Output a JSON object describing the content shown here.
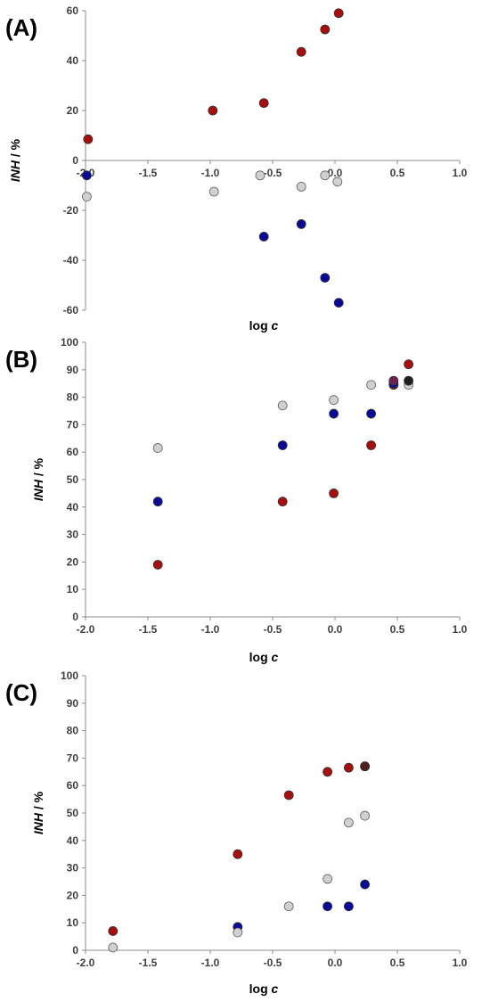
{
  "chart_data": [
    {
      "type": "scatter",
      "panel_label": "(A)",
      "xlabel": {
        "plain": "log ",
        "italic": "c"
      },
      "ylabel": {
        "italic": "INH",
        "plain": " / %"
      },
      "xlim": [
        -2.0,
        1.0
      ],
      "ylim": [
        -60,
        60
      ],
      "xticks": [
        -2.0,
        -1.5,
        -1.0,
        -0.5,
        0.0,
        0.5,
        1.0
      ],
      "xtick_labels": [
        "-2.0",
        "-1.5",
        "-1.0",
        "-0.5",
        "0.0",
        "0.5",
        "1.0"
      ],
      "yticks": [
        -60,
        -40,
        -20,
        0,
        20,
        40,
        60
      ],
      "ytick_labels": [
        "-60",
        "-40",
        "-20",
        "0",
        "20",
        "40",
        "60"
      ],
      "x_axis_at": 0,
      "grid": false,
      "series": [
        {
          "color": "#a50f0f",
          "points": [
            [
              -1.98,
              8.5
            ],
            [
              -0.98,
              20
            ],
            [
              -0.57,
              23
            ],
            [
              -0.27,
              43.5
            ],
            [
              -0.08,
              52.5
            ],
            [
              0.03,
              59
            ]
          ]
        },
        {
          "color": "#0a0a96",
          "points": [
            [
              -1.99,
              -6
            ],
            [
              -0.57,
              -30.5
            ],
            [
              -0.27,
              -25.5
            ],
            [
              -0.08,
              -47
            ],
            [
              0.03,
              -57
            ]
          ]
        },
        {
          "color": "#d0d0d0",
          "points": [
            [
              -1.99,
              -14.5
            ],
            [
              -0.97,
              -12.5
            ],
            [
              -0.6,
              -6
            ],
            [
              -0.27,
              -10.5
            ],
            [
              -0.08,
              -6
            ],
            [
              0.02,
              -8.5
            ]
          ]
        }
      ]
    },
    {
      "type": "scatter",
      "panel_label": "(B)",
      "xlabel": {
        "plain": "log ",
        "italic": "c"
      },
      "ylabel": {
        "italic": "INH",
        "plain": " / %"
      },
      "xlim": [
        -2.0,
        1.0
      ],
      "ylim": [
        0,
        100
      ],
      "xticks": [
        -2.0,
        -1.5,
        -1.0,
        -0.5,
        0.0,
        0.5,
        1.0
      ],
      "xtick_labels": [
        "-2.0",
        "-1.5",
        "-1.0",
        "-0.5",
        "0.0",
        "0.5",
        "1.0"
      ],
      "yticks": [
        0,
        10,
        20,
        30,
        40,
        50,
        60,
        70,
        80,
        90,
        100
      ],
      "ytick_labels": [
        "0",
        "10",
        "20",
        "30",
        "40",
        "50",
        "60",
        "70",
        "80",
        "90",
        "100"
      ],
      "x_axis_at": 0,
      "grid": false,
      "series": [
        {
          "color": "#a50f0f",
          "points": [
            [
              -1.42,
              19
            ],
            [
              -0.42,
              42
            ],
            [
              -0.01,
              45
            ],
            [
              0.29,
              62.5
            ],
            [
              0.47,
              84.5
            ],
            [
              0.59,
              92
            ]
          ]
        },
        {
          "color": "#0a0a96",
          "points": [
            [
              -1.42,
              42
            ],
            [
              -0.42,
              62.5
            ],
            [
              -0.01,
              74
            ],
            [
              0.29,
              74
            ],
            [
              0.47,
              85
            ]
          ]
        },
        {
          "color": "#d0d0d0",
          "points": [
            [
              -1.42,
              61.5
            ],
            [
              -0.42,
              77
            ],
            [
              -0.01,
              79
            ],
            [
              0.29,
              84.5
            ],
            [
              0.59,
              84.5
            ]
          ]
        },
        {
          "color": "#702050",
          "points": [
            [
              0.47,
              86
            ]
          ]
        },
        {
          "color": "#202020",
          "points": [
            [
              0.59,
              86
            ]
          ]
        }
      ]
    },
    {
      "type": "scatter",
      "panel_label": "(C)",
      "xlabel": {
        "plain": "log ",
        "italic": "c"
      },
      "ylabel": {
        "italic": "INH",
        "plain": " / %"
      },
      "xlim": [
        -2.0,
        1.0
      ],
      "ylim": [
        0,
        100
      ],
      "xticks": [
        -2.0,
        -1.5,
        -1.0,
        -0.5,
        0.0,
        0.5,
        1.0
      ],
      "xtick_labels": [
        "-2.0",
        "-1.5",
        "-1.0",
        "-0.5",
        "0.0",
        "0.5",
        "1.0"
      ],
      "yticks": [
        0,
        10,
        20,
        30,
        40,
        50,
        60,
        70,
        80,
        90,
        100
      ],
      "ytick_labels": [
        "0",
        "10",
        "20",
        "30",
        "40",
        "50",
        "60",
        "70",
        "80",
        "90",
        "100"
      ],
      "x_axis_at": 0,
      "grid": false,
      "series": [
        {
          "color": "#a50f0f",
          "points": [
            [
              -1.78,
              7
            ],
            [
              -0.78,
              35
            ],
            [
              -0.37,
              56.5
            ],
            [
              -0.06,
              65
            ],
            [
              0.11,
              66.5
            ],
            [
              0.24,
              67
            ]
          ]
        },
        {
          "color": "#0a0a96",
          "points": [
            [
              -0.78,
              8.5
            ],
            [
              -0.06,
              16
            ],
            [
              0.11,
              16
            ],
            [
              0.24,
              24
            ]
          ]
        },
        {
          "color": "#d0d0d0",
          "points": [
            [
              -1.78,
              1
            ],
            [
              -0.78,
              6.5
            ],
            [
              -0.37,
              16
            ],
            [
              -0.06,
              26
            ],
            [
              0.11,
              46.5
            ],
            [
              0.24,
              49
            ]
          ]
        },
        {
          "color": "#502020",
          "points": [
            [
              0.24,
              67
            ]
          ]
        }
      ]
    }
  ]
}
